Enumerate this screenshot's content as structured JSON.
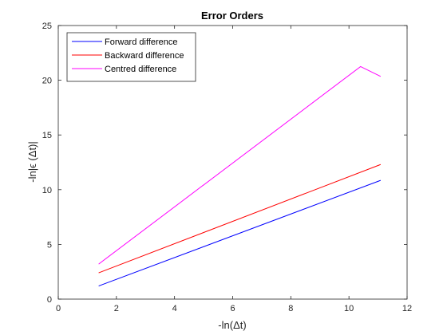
{
  "chart_data": {
    "type": "line",
    "title": "Error Orders",
    "xlabel": "-ln(Δt)",
    "ylabel": "-ln|ϵ (Δt)|",
    "xlim": [
      0,
      12
    ],
    "ylim": [
      0,
      25
    ],
    "xticks": [
      "0",
      "2",
      "4",
      "6",
      "8",
      "10",
      "12"
    ],
    "yticks": [
      "0",
      "5",
      "10",
      "15",
      "20",
      "25"
    ],
    "grid": false,
    "legend_position": "top-left",
    "series": [
      {
        "name": "Forward difference",
        "color": "#0000ff",
        "x": [
          1.39,
          11.09
        ],
        "y": [
          1.2,
          10.85
        ]
      },
      {
        "name": "Backward difference",
        "color": "#ff0000",
        "x": [
          1.39,
          11.09
        ],
        "y": [
          2.4,
          12.3
        ]
      },
      {
        "name": "Centred difference",
        "color": "#ff00ff",
        "x": [
          1.39,
          10.4,
          11.09
        ],
        "y": [
          3.2,
          21.25,
          20.35
        ]
      }
    ]
  }
}
